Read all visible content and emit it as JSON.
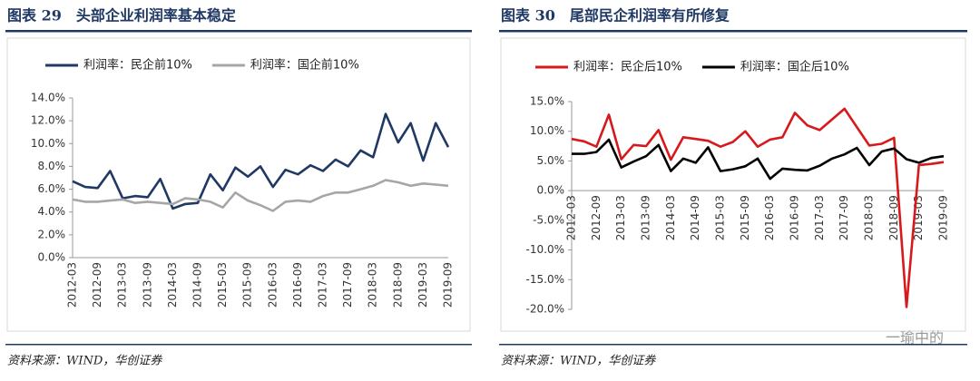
{
  "chart_data": [
    {
      "type": "line",
      "title": "图表 29　头部企业利润率基本稳定",
      "source": "资料来源：WIND，华创证券",
      "categories": [
        "2012-03",
        null,
        "2012-09",
        null,
        "2013-03",
        null,
        "2013-09",
        null,
        "2014-03",
        null,
        "2014-09",
        null,
        "2015-03",
        null,
        "2015-09",
        null,
        "2016-03",
        null,
        "2016-09",
        null,
        "2017-03",
        null,
        "2017-09",
        null,
        "2018-03",
        null,
        "2018-09",
        null,
        "2019-03",
        null,
        "2019-09"
      ],
      "series": [
        {
          "name": "利润率：民企前10%",
          "color": "#1f3864",
          "values": [
            6.7,
            6.2,
            6.1,
            7.6,
            5.2,
            5.4,
            5.3,
            6.9,
            4.3,
            4.7,
            4.8,
            7.3,
            5.9,
            7.9,
            7.1,
            8.0,
            6.2,
            7.7,
            7.3,
            8.1,
            7.6,
            8.6,
            8.0,
            9.4,
            8.8,
            12.6,
            10.1,
            11.8,
            8.5,
            11.8,
            9.7
          ]
        },
        {
          "name": "利润率：国企前10%",
          "color": "#a6a6a6",
          "values": [
            5.1,
            4.9,
            4.9,
            5.0,
            5.1,
            4.8,
            4.9,
            4.8,
            4.7,
            5.2,
            5.1,
            4.9,
            4.4,
            5.7,
            5.0,
            4.6,
            4.1,
            4.9,
            5.0,
            4.9,
            5.4,
            5.7,
            5.7,
            6.0,
            6.3,
            6.8,
            6.6,
            6.3,
            6.5,
            6.4,
            6.3
          ]
        }
      ],
      "ylim": [
        0,
        14
      ],
      "yticks": [
        {
          "value": 0,
          "label": "0.0%"
        },
        {
          "value": 2,
          "label": "2.0%"
        },
        {
          "value": 4,
          "label": "4.0%"
        },
        {
          "value": 6,
          "label": "6.0%"
        },
        {
          "value": 8,
          "label": "8.0%"
        },
        {
          "value": 10,
          "label": "10.0%"
        },
        {
          "value": 12,
          "label": "12.0%"
        },
        {
          "value": 14,
          "label": "14.0%"
        }
      ],
      "grid": false
    },
    {
      "type": "line",
      "title": "图表 30　尾部民企利润率有所修复",
      "source": "资料来源：WIND，华创证券",
      "categories": [
        "2012-03",
        null,
        "2012-09",
        null,
        "2013-03",
        null,
        "2013-09",
        null,
        "2014-03",
        null,
        "2014-09",
        null,
        "2015-03",
        null,
        "2015-09",
        null,
        "2016-03",
        null,
        "2016-09",
        null,
        "2017-03",
        null,
        "2017-09",
        null,
        "2018-03",
        null,
        "2018-09",
        null,
        "2019-03",
        null,
        "2019-09"
      ],
      "series": [
        {
          "name": "利润率：民企后10%",
          "color": "#d7191c",
          "values": [
            8.7,
            8.3,
            7.4,
            12.8,
            5.3,
            7.7,
            7.5,
            10.2,
            5.2,
            9.0,
            8.7,
            8.4,
            7.4,
            8.2,
            10.0,
            7.4,
            8.6,
            9.0,
            13.1,
            11.0,
            10.2,
            12.0,
            13.8,
            10.7,
            7.6,
            7.9,
            8.9,
            -19.6,
            4.3,
            4.5,
            4.8
          ]
        },
        {
          "name": "利润率：国企后10%",
          "color": "#000000",
          "values": [
            6.2,
            6.2,
            6.5,
            8.6,
            3.9,
            4.9,
            5.8,
            7.7,
            3.3,
            5.4,
            4.7,
            7.3,
            3.3,
            3.6,
            4.1,
            5.4,
            2.0,
            3.7,
            3.5,
            3.4,
            4.2,
            5.4,
            6.1,
            7.2,
            4.3,
            6.6,
            7.1,
            5.3,
            4.7,
            5.5,
            5.8
          ]
        }
      ],
      "ylim": [
        -20,
        15
      ],
      "yticks": [
        {
          "value": -20,
          "label": "-20.0%"
        },
        {
          "value": -15,
          "label": "-15.0%"
        },
        {
          "value": -10,
          "label": "-10.0%"
        },
        {
          "value": -5,
          "label": "-5.0%"
        },
        {
          "value": 0,
          "label": "0.0%"
        },
        {
          "value": 5,
          "label": "5.0%"
        },
        {
          "value": 10,
          "label": "10.0%"
        },
        {
          "value": 15,
          "label": "15.0%"
        }
      ],
      "grid": false
    }
  ],
  "watermark": "一瑜中的"
}
